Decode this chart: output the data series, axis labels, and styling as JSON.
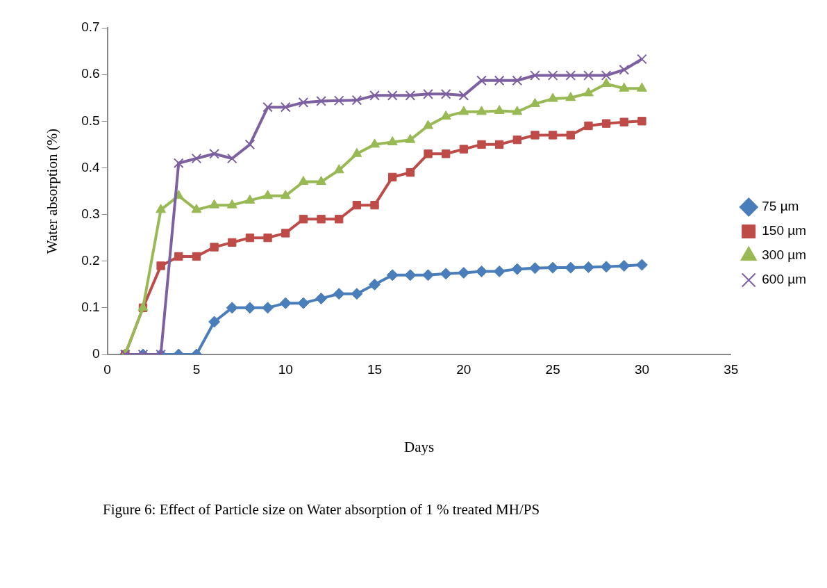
{
  "chart_data": {
    "type": "line",
    "xlabel": "Days",
    "ylabel": "Water absorption (%)",
    "x": [
      1,
      2,
      3,
      4,
      5,
      6,
      7,
      8,
      9,
      10,
      11,
      12,
      13,
      14,
      15,
      16,
      17,
      18,
      19,
      20,
      21,
      22,
      23,
      24,
      25,
      26,
      27,
      28,
      29,
      30
    ],
    "xlim": [
      0,
      35
    ],
    "xticks": [
      0,
      5,
      10,
      15,
      20,
      25,
      30,
      35
    ],
    "ylim": [
      0,
      0.7
    ],
    "yticks": [
      0,
      0.1,
      0.2,
      0.3,
      0.4,
      0.5,
      0.6,
      0.7
    ],
    "grid": false,
    "legend": "right",
    "series": [
      {
        "name": "75 µm",
        "color": "#4a7ebb",
        "marker": "diamond",
        "values": [
          0,
          0,
          0,
          0,
          0,
          0.07,
          0.1,
          0.1,
          0.1,
          0.11,
          0.11,
          0.12,
          0.13,
          0.13,
          0.15,
          0.17,
          0.17,
          0.17,
          0.173,
          0.175,
          0.178,
          0.178,
          0.183,
          0.185,
          0.186,
          0.186,
          0.187,
          0.188,
          0.19,
          0.192
        ]
      },
      {
        "name": "150 µm",
        "color": "#be4b48",
        "marker": "square",
        "values": [
          0,
          0.1,
          0.19,
          0.21,
          0.21,
          0.23,
          0.24,
          0.25,
          0.25,
          0.26,
          0.29,
          0.29,
          0.29,
          0.32,
          0.32,
          0.38,
          0.39,
          0.43,
          0.43,
          0.44,
          0.45,
          0.45,
          0.46,
          0.47,
          0.47,
          0.47,
          0.49,
          0.495,
          0.498,
          0.5
        ]
      },
      {
        "name": "300 µm",
        "color": "#98b954",
        "marker": "triangle",
        "values": [
          0,
          0.1,
          0.31,
          0.34,
          0.31,
          0.32,
          0.32,
          0.33,
          0.34,
          0.34,
          0.37,
          0.37,
          0.395,
          0.43,
          0.45,
          0.455,
          0.46,
          0.49,
          0.51,
          0.52,
          0.52,
          0.522,
          0.52,
          0.537,
          0.548,
          0.55,
          0.56,
          0.58,
          0.57,
          0.57
        ]
      },
      {
        "name": "600 µm",
        "color": "#7d60a0",
        "marker": "cross",
        "values": [
          0,
          0,
          0,
          0.41,
          0.42,
          0.43,
          0.42,
          0.45,
          0.53,
          0.53,
          0.54,
          0.543,
          0.544,
          0.545,
          0.555,
          0.555,
          0.555,
          0.558,
          0.558,
          0.555,
          0.587,
          0.587,
          0.587,
          0.598,
          0.598,
          0.598,
          0.598,
          0.598,
          0.61,
          0.633
        ]
      }
    ],
    "annotations": [
      "Figure 6: Effect of Particle size on Water absorption of 1 % treated MH/PS"
    ]
  }
}
